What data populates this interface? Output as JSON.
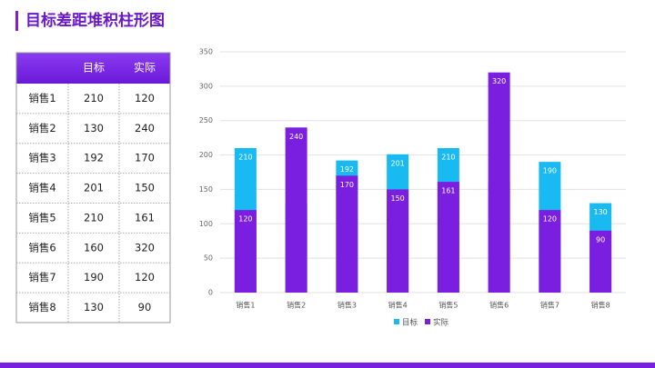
{
  "title": "目标差距堆积柱形图",
  "chart_data": {
    "type": "bar",
    "categories": [
      "销售1",
      "销售2",
      "销售3",
      "销售4",
      "销售5",
      "销售6",
      "销售7",
      "销售8"
    ],
    "series": [
      {
        "name": "目标",
        "color": "#19b9f1",
        "values": [
          210,
          130,
          192,
          201,
          210,
          160,
          190,
          130
        ]
      },
      {
        "name": "实际",
        "color": "#7a1ee0",
        "values": [
          120,
          240,
          170,
          150,
          161,
          320,
          120,
          90
        ]
      }
    ],
    "ylim": [
      0,
      350
    ],
    "yticks": [
      0,
      50,
      100,
      150,
      200,
      250,
      300,
      350
    ],
    "grid": true,
    "legend": "bottom",
    "overlap": true
  }
}
